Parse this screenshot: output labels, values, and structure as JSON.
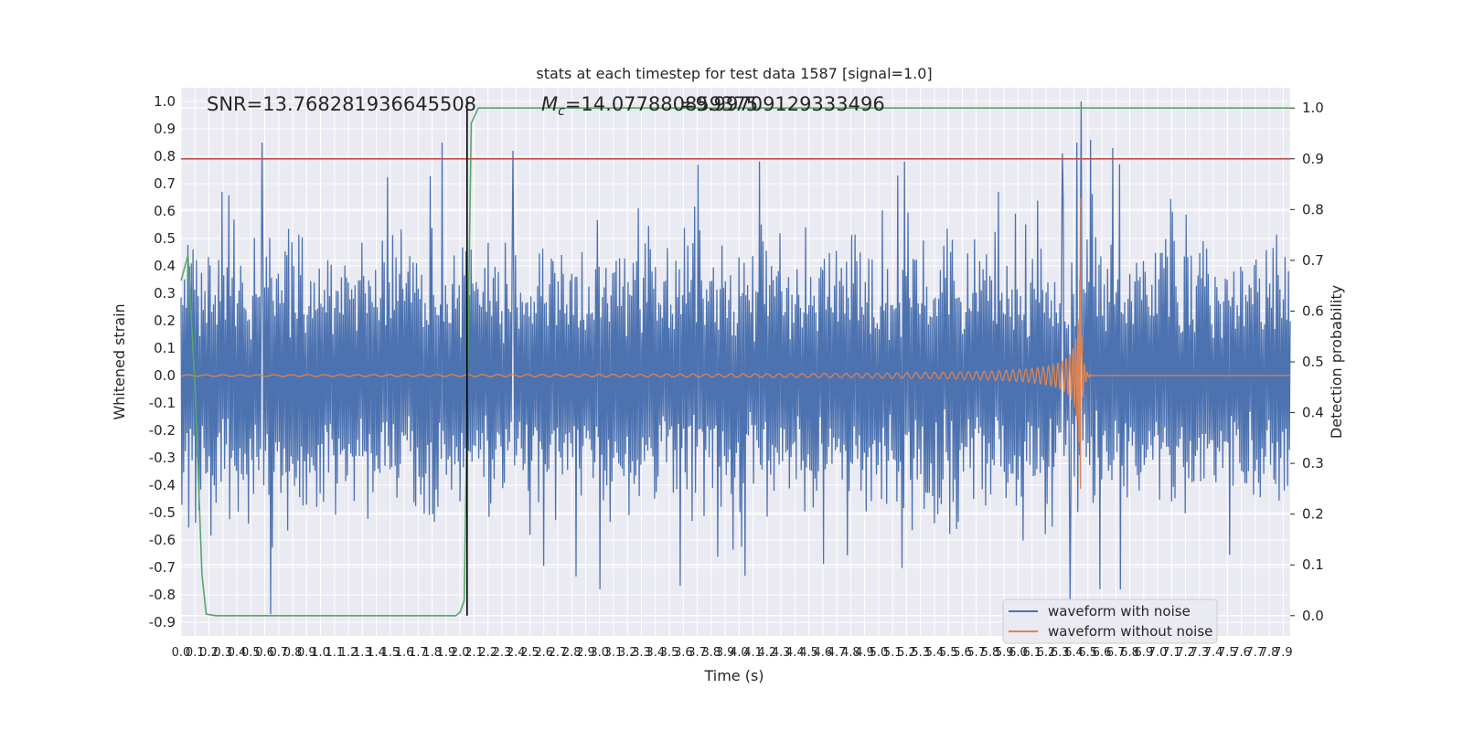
{
  "chart_data": {
    "type": "line",
    "title": "stats at each timestep for test data 1587 [signal=1.0]",
    "xlabel": "Time (s)",
    "ylabel_left": "Whitened strain",
    "ylabel_right": "Detection probability",
    "xlim": [
      0.0,
      7.95
    ],
    "ylim_left": [
      -0.95,
      1.05
    ],
    "ylim_right": [
      -0.04,
      1.04
    ],
    "grid": true,
    "x_ticks": [
      "0.0",
      "0.1",
      "0.2",
      "0.3",
      "0.4",
      "0.5",
      "0.6",
      "0.7",
      "0.8",
      "0.9",
      "1.0",
      "1.1",
      "1.2",
      "1.3",
      "1.4",
      "1.5",
      "1.6",
      "1.7",
      "1.8",
      "1.9",
      "2.0",
      "2.1",
      "2.2",
      "2.3",
      "2.4",
      "2.5",
      "2.6",
      "2.7",
      "2.8",
      "2.9",
      "3.0",
      "3.1",
      "3.2",
      "3.3",
      "3.4",
      "3.5",
      "3.6",
      "3.7",
      "3.8",
      "3.9",
      "4.0",
      "4.1",
      "4.2",
      "4.3",
      "4.4",
      "4.5",
      "4.6",
      "4.7",
      "4.8",
      "4.9",
      "5.0",
      "5.1",
      "5.2",
      "5.3",
      "5.4",
      "5.5",
      "5.6",
      "5.7",
      "5.8",
      "5.9",
      "6.0",
      "6.1",
      "6.2",
      "6.3",
      "6.4",
      "6.5",
      "6.6",
      "6.7",
      "6.8",
      "6.9",
      "7.0",
      "7.1",
      "7.2",
      "7.3",
      "7.4",
      "7.5",
      "7.6",
      "7.7",
      "7.8",
      "7.9"
    ],
    "y_ticks_left": [
      "-0.9",
      "-0.8",
      "-0.7",
      "-0.6",
      "-0.5",
      "-0.4",
      "-0.3",
      "-0.2",
      "-0.1",
      "0.0",
      "0.1",
      "0.2",
      "0.3",
      "0.4",
      "0.5",
      "0.6",
      "0.7",
      "0.8",
      "0.9",
      "1.0"
    ],
    "y_ticks_right": [
      "0.0",
      "0.1",
      "0.2",
      "0.3",
      "0.4",
      "0.5",
      "0.6",
      "0.7",
      "0.8",
      "0.9",
      "1.0"
    ],
    "annotations": {
      "snr": "SNR=13.768281936645508",
      "mc_prefix": "M",
      "mc_sub": "c",
      "mc_value": "=14.077880859375",
      "overlap": "=9.99709129333496"
    },
    "series": [
      {
        "name": "waveform with noise",
        "color": "#4c72b0",
        "axis": "left",
        "description_values": {
          "noise_band": [
            -0.35,
            0.35
          ],
          "peak_max": 1.0,
          "peak_min": -0.87
        },
        "spikes": [
          {
            "x": 0.58,
            "y": 0.85
          },
          {
            "x": 0.64,
            "y": -0.87
          },
          {
            "x": 1.87,
            "y": 0.85
          },
          {
            "x": 2.38,
            "y": 0.82
          },
          {
            "x": 6.32,
            "y": 0.81
          },
          {
            "x": 6.37,
            "y": -0.82
          },
          {
            "x": 6.42,
            "y": 0.85
          },
          {
            "x": 6.45,
            "y": 1.0
          },
          {
            "x": 6.52,
            "y": 0.86
          },
          {
            "x": 6.68,
            "y": 0.83
          },
          {
            "x": 6.73,
            "y": -0.78
          }
        ]
      },
      {
        "name": "waveform without noise",
        "color": "#dd8452",
        "axis": "left",
        "merger_time": 6.45,
        "peak_amplitude": 0.65
      },
      {
        "name": "",
        "color": "#55a868",
        "axis": "right",
        "points": [
          [
            0.0,
            0.66
          ],
          [
            0.05,
            0.71
          ],
          [
            0.1,
            0.45
          ],
          [
            0.15,
            0.08
          ],
          [
            0.18,
            0.003
          ],
          [
            0.25,
            0.0
          ],
          [
            1.0,
            0.0
          ],
          [
            1.97,
            0.0
          ],
          [
            2.0,
            0.007
          ],
          [
            2.03,
            0.03
          ],
          [
            2.08,
            0.97
          ],
          [
            2.13,
            1.0
          ],
          [
            7.95,
            1.0
          ]
        ]
      }
    ],
    "reference_lines": {
      "threshold_right": 0.9,
      "threshold_color": "#c44e52",
      "vertical_x": 2.05,
      "vertical_color": "#000000"
    }
  }
}
